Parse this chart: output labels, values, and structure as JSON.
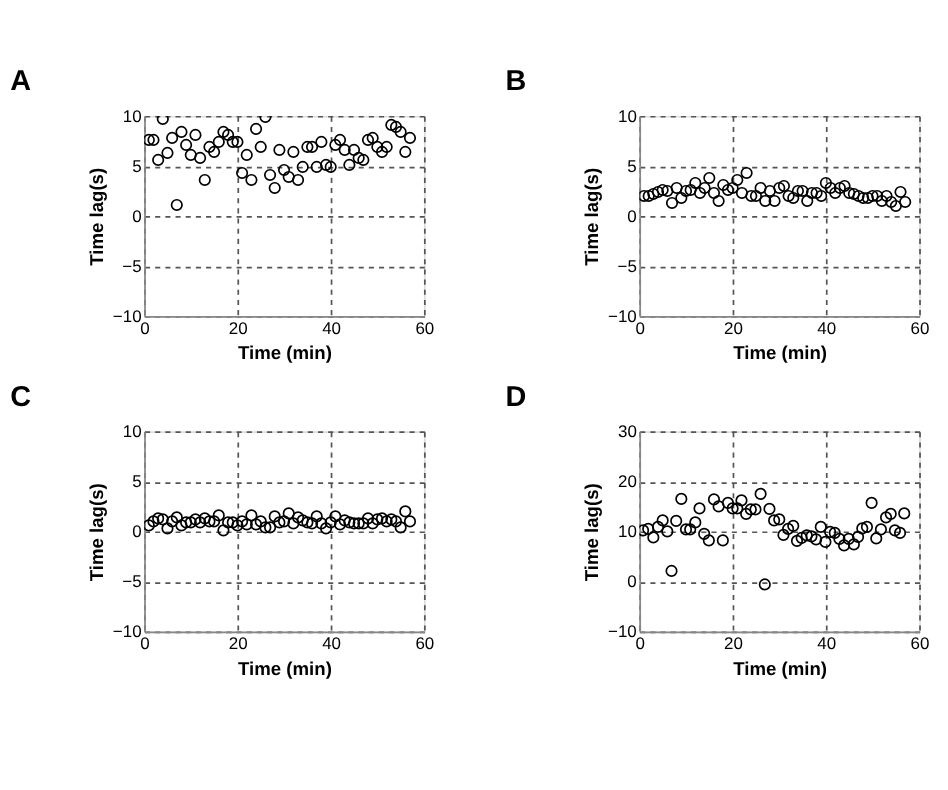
{
  "chart_data": [
    {
      "type": "scatter",
      "title": "A",
      "xlabel": "Time (min)",
      "ylabel": "Time lag(s)",
      "xlim": [
        0,
        60
      ],
      "xticks": [
        0,
        20,
        40,
        60
      ],
      "ylim": [
        -10,
        10
      ],
      "yticks": [
        -10,
        -5,
        0,
        5,
        10
      ],
      "grid": true,
      "marker": "circle",
      "x": [
        1,
        2,
        3,
        4,
        5,
        6,
        7,
        8,
        9,
        10,
        11,
        12,
        13,
        14,
        15,
        16,
        17,
        18,
        19,
        20,
        21,
        22,
        23,
        24,
        25,
        26,
        27,
        28,
        29,
        30,
        31,
        32,
        33,
        34,
        35,
        36,
        37,
        38,
        39,
        40,
        41,
        42,
        43,
        44,
        45,
        46,
        47,
        48,
        49,
        50,
        51,
        52,
        53,
        54,
        55,
        56,
        57
      ],
      "series": [
        {
          "color": "#000000",
          "values": [
            7.6,
            7.6,
            5.6,
            9.7,
            6.3,
            7.8,
            1.1,
            8.4,
            7.1,
            6.1,
            8.1,
            5.8,
            3.6,
            6.9,
            6.4,
            7.4,
            8.4,
            8.1,
            7.4,
            7.4,
            4.3,
            6.1,
            3.6,
            8.7,
            6.9,
            9.9,
            4.1,
            2.8,
            6.6,
            4.6,
            3.9,
            6.4,
            3.6,
            4.9,
            6.9,
            6.9,
            4.9,
            7.4,
            5.1,
            4.9,
            7.1,
            7.6,
            6.6,
            5.1,
            6.6,
            5.8,
            5.6,
            7.6,
            7.8,
            6.9,
            6.4,
            6.9,
            9.1,
            8.9,
            8.4,
            6.4,
            7.8
          ]
        }
      ]
    },
    {
      "type": "scatter",
      "title": "B",
      "xlabel": "Time (min)",
      "ylabel": "Time lag(s)",
      "xlim": [
        0,
        60
      ],
      "xticks": [
        0,
        20,
        40,
        60
      ],
      "ylim": [
        -10,
        10
      ],
      "yticks": [
        -10,
        -5,
        0,
        5,
        10
      ],
      "grid": true,
      "marker": "circle",
      "x": [
        1,
        2,
        3,
        4,
        5,
        6,
        7,
        8,
        9,
        10,
        11,
        12,
        13,
        14,
        15,
        16,
        17,
        18,
        19,
        20,
        21,
        22,
        23,
        24,
        25,
        26,
        27,
        28,
        29,
        30,
        31,
        32,
        33,
        34,
        35,
        36,
        37,
        38,
        39,
        40,
        41,
        42,
        43,
        44,
        45,
        46,
        47,
        48,
        49,
        50,
        51,
        52,
        53,
        54,
        55,
        56,
        57
      ],
      "series": [
        {
          "color": "#000000",
          "values": [
            2.0,
            2.0,
            2.2,
            2.4,
            2.6,
            2.5,
            1.3,
            2.8,
            1.8,
            2.5,
            2.6,
            3.3,
            2.3,
            2.8,
            3.8,
            2.3,
            1.5,
            3.1,
            2.6,
            2.8,
            3.6,
            2.3,
            4.3,
            2.0,
            2.0,
            2.8,
            1.5,
            2.5,
            1.5,
            2.8,
            3.0,
            2.0,
            1.8,
            2.5,
            2.5,
            1.5,
            2.3,
            2.3,
            2.0,
            3.3,
            2.8,
            2.3,
            2.8,
            3.0,
            2.3,
            2.2,
            2.0,
            1.8,
            1.8,
            2.0,
            2.0,
            1.5,
            2.0,
            1.4,
            1.0,
            2.4,
            1.4
          ]
        }
      ]
    },
    {
      "type": "scatter",
      "title": "C",
      "xlabel": "Time (min)",
      "ylabel": "Time lag(s)",
      "xlim": [
        0,
        60
      ],
      "xticks": [
        0,
        20,
        40,
        60
      ],
      "ylim": [
        -10,
        10
      ],
      "yticks": [
        -10,
        -5,
        0,
        5,
        10
      ],
      "grid": true,
      "marker": "circle",
      "x": [
        1,
        2,
        3,
        4,
        5,
        6,
        7,
        8,
        9,
        10,
        11,
        12,
        13,
        14,
        15,
        16,
        17,
        18,
        19,
        20,
        21,
        22,
        23,
        24,
        25,
        26,
        27,
        28,
        29,
        30,
        31,
        32,
        33,
        34,
        35,
        36,
        37,
        38,
        39,
        40,
        41,
        42,
        43,
        44,
        45,
        46,
        47,
        48,
        49,
        50,
        51,
        52,
        53,
        54,
        55,
        56,
        57
      ],
      "series": [
        {
          "color": "#000000",
          "values": [
            0.6,
            1.0,
            1.3,
            1.2,
            0.3,
            1.0,
            1.4,
            0.6,
            0.9,
            0.9,
            1.2,
            0.9,
            1.3,
            1.0,
            1.0,
            1.6,
            0.1,
            0.9,
            0.9,
            0.6,
            1.0,
            0.7,
            1.6,
            0.7,
            1.0,
            0.4,
            0.4,
            1.5,
            0.9,
            1.0,
            1.8,
            0.8,
            1.4,
            1.1,
            0.9,
            0.8,
            1.5,
            0.8,
            0.3,
            0.9,
            1.5,
            0.7,
            1.1,
            0.9,
            0.8,
            0.8,
            0.8,
            1.3,
            0.8,
            1.2,
            1.3,
            1.0,
            1.2,
            1.0,
            0.4,
            2.0,
            1.0
          ]
        }
      ]
    },
    {
      "type": "scatter",
      "title": "D",
      "xlabel": "Time (min)",
      "ylabel": "Time lag(s)",
      "xlim": [
        0,
        60
      ],
      "xticks": [
        0,
        20,
        40,
        60
      ],
      "ylim": [
        -10,
        30
      ],
      "yticks": [
        -10,
        0,
        10,
        20,
        30
      ],
      "grid": true,
      "marker": "circle",
      "x": [
        0.8,
        1.9,
        3.0,
        4.0,
        5.0,
        6.0,
        6.9,
        7.9,
        9.0,
        10.0,
        10.9,
        12.0,
        12.9,
        13.9,
        14.9,
        16.0,
        17.0,
        17.9,
        19.0,
        20.0,
        21.0,
        21.9,
        22.9,
        23.9,
        24.9,
        26.0,
        26.9,
        27.9,
        28.9,
        30.0,
        30.9,
        31.9,
        33.0,
        33.8,
        34.8,
        35.9,
        36.9,
        37.9,
        38.9,
        39.9,
        40.9,
        41.9,
        42.9,
        43.9,
        44.9,
        46.0,
        46.9,
        47.8,
        48.8,
        49.8,
        50.8,
        51.8,
        52.9,
        53.9,
        54.8,
        55.9,
        56.8
      ],
      "series": [
        {
          "color": "#000000",
          "values": [
            10.2,
            10.5,
            8.8,
            10.9,
            12.2,
            10.0,
            2.1,
            12.1,
            16.5,
            10.4,
            10.4,
            11.8,
            14.6,
            9.5,
            8.2,
            16.4,
            15.0,
            8.2,
            15.7,
            14.6,
            14.6,
            16.2,
            13.5,
            14.4,
            14.4,
            17.5,
            -0.6,
            14.5,
            12.2,
            12.4,
            9.3,
            10.5,
            11.1,
            8.1,
            8.7,
            9.2,
            9.0,
            8.4,
            10.9,
            7.9,
            9.9,
            9.7,
            8.5,
            7.2,
            8.5,
            7.4,
            8.9,
            10.6,
            10.9,
            15.7,
            8.6,
            10.4,
            12.8,
            13.5,
            10.2,
            9.7,
            13.6
          ]
        }
      ]
    }
  ]
}
